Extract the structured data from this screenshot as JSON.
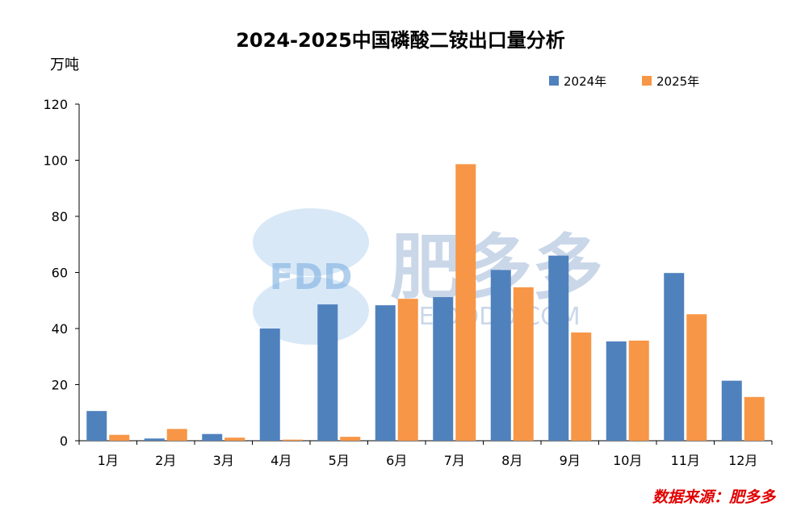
{
  "chart_data": {
    "type": "bar",
    "title": "2024-2025中国磷酸二铵出口量分析",
    "ylabel": "万吨",
    "categories": [
      "1月",
      "2月",
      "3月",
      "4月",
      "5月",
      "6月",
      "7月",
      "8月",
      "9月",
      "10月",
      "11月",
      "12月"
    ],
    "series": [
      {
        "name": "2024年",
        "color": "#4f81bd",
        "values": [
          10.6,
          0.8,
          2.4,
          40.0,
          48.6,
          48.3,
          51.2,
          60.9,
          66.0,
          35.4,
          59.8,
          21.4
        ]
      },
      {
        "name": "2025年",
        "color": "#f79646",
        "values": [
          2.1,
          4.2,
          1.1,
          0.4,
          1.4,
          50.6,
          98.6,
          54.7,
          38.6,
          35.7,
          45.1,
          15.6
        ]
      }
    ],
    "ylim": [
      0,
      120
    ],
    "yticks": [
      0,
      20,
      40,
      60,
      80,
      100,
      120
    ],
    "grid": false,
    "legend_position": "top-right"
  },
  "watermark": {
    "logo_text": "FDD",
    "brand_text": "肥多多",
    "url_text": "FEIDODO.COM"
  },
  "source_note": "数据来源：肥多多"
}
